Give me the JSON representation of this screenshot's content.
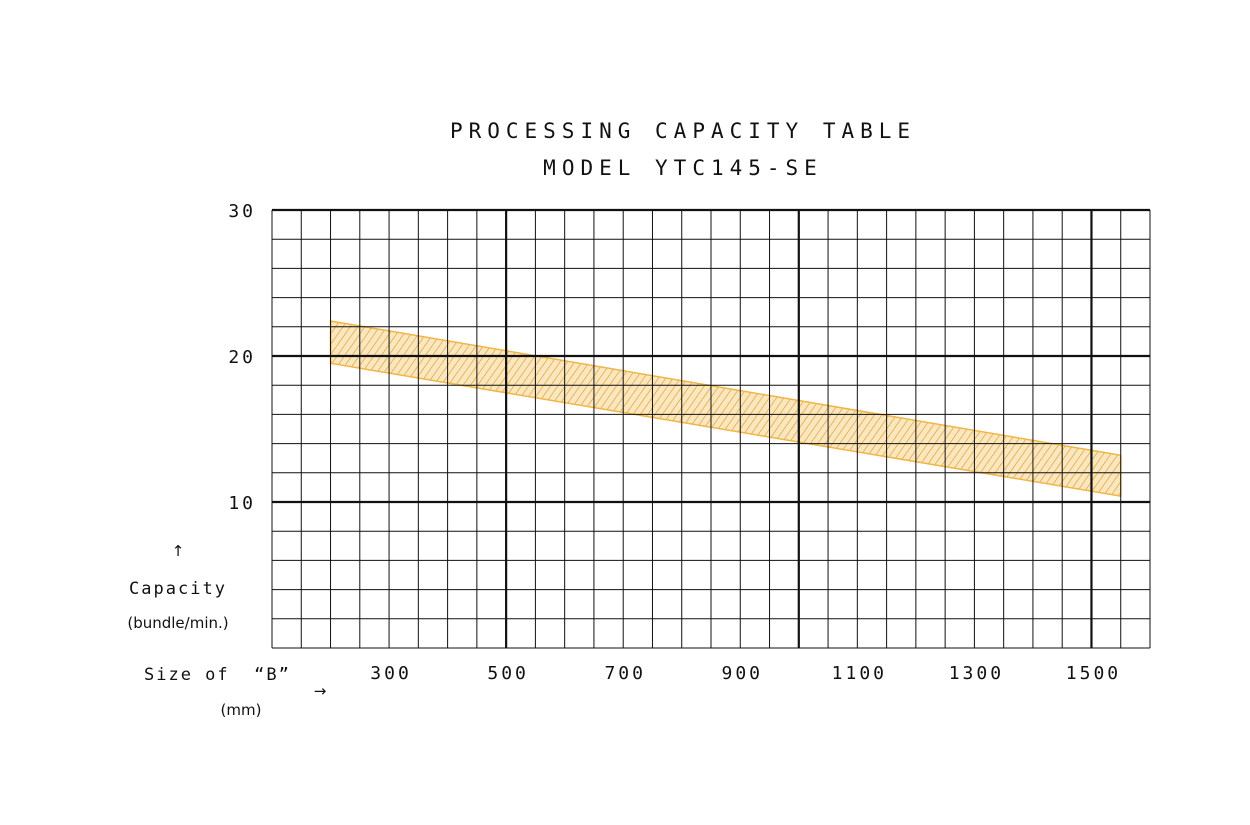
{
  "chart_data": {
    "type": "area",
    "title": "PROCESSING CAPACITY TABLE",
    "subtitle": "MODEL   YTC145-SE",
    "xlabel": "Size of  “B”",
    "xlabel_unit": "(mm)",
    "ylabel": "Capacity",
    "ylabel_unit": "(bundle/min.)",
    "xlim": [
      100,
      1600
    ],
    "ylim": [
      0,
      30
    ],
    "x_ticks": [
      300,
      500,
      700,
      900,
      1100,
      1300,
      1500
    ],
    "y_ticks": [
      10,
      20,
      30
    ],
    "x_minor_step": 50,
    "y_minor_step": 2,
    "x_major_lines": [
      500,
      1000,
      1500
    ],
    "y_major_lines": [
      10,
      20
    ],
    "grid": true,
    "series": [
      {
        "x": [
          200,
          1550
        ],
        "upper": [
          22.4,
          13.2
        ],
        "lower": [
          19.5,
          10.4
        ],
        "color": "#f0b548"
      }
    ]
  },
  "colors": {
    "band": "#f0b548",
    "band_fill": "#fbe7bd",
    "grid": "#111111"
  },
  "icons": {
    "up_arrow": "↑",
    "right_arrow": "→"
  }
}
